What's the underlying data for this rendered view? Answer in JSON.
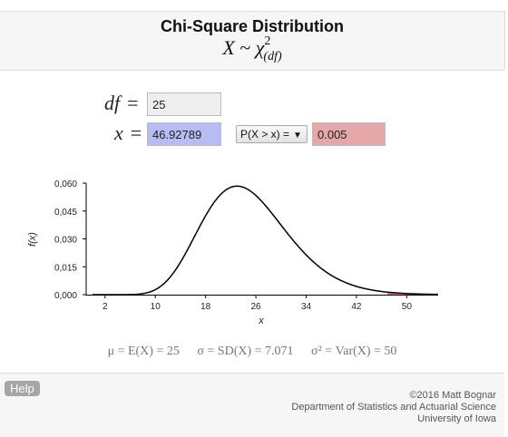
{
  "header": {
    "title": "Chi-Square Distribution",
    "formula": {
      "var": "X",
      "op": "~",
      "chi": "χ",
      "sup": "2",
      "sub": "(df)"
    }
  },
  "inputs": {
    "df_label": "df",
    "df_value": "25",
    "x_label": "x",
    "x_value": "46.92789",
    "eq": "=",
    "mode_select": "P(X > x) =",
    "result_value": "0.005"
  },
  "stats": {
    "mean": "μ = E(X) = 25",
    "sd": "σ = SD(X) = 7.071",
    "var": "σ² = Var(X) = 50"
  },
  "footer": {
    "help_label": "Help",
    "copyright": "©2016 Matt Bognar",
    "department": "Department of Statistics and Actuarial Science",
    "university": "University of Iowa"
  },
  "colors": {
    "x_input": "#b7bdf2",
    "result_input": "#e6a7a9",
    "df_input": "#eeeeee",
    "curve": "#000000"
  },
  "chart_data": {
    "type": "line",
    "df": 25,
    "xlabel": "x",
    "ylabel": "f(x)",
    "xlim": [
      -1,
      55
    ],
    "ylim": [
      0,
      0.06
    ],
    "x_ticks": [
      "2",
      "10",
      "18",
      "26",
      "34",
      "42",
      "50"
    ],
    "y_ticks": [
      "0,060",
      "0,045",
      "0,030",
      "0,015",
      "0,000"
    ],
    "shaded_from": 46.92789,
    "grid": false,
    "legend": "none"
  }
}
